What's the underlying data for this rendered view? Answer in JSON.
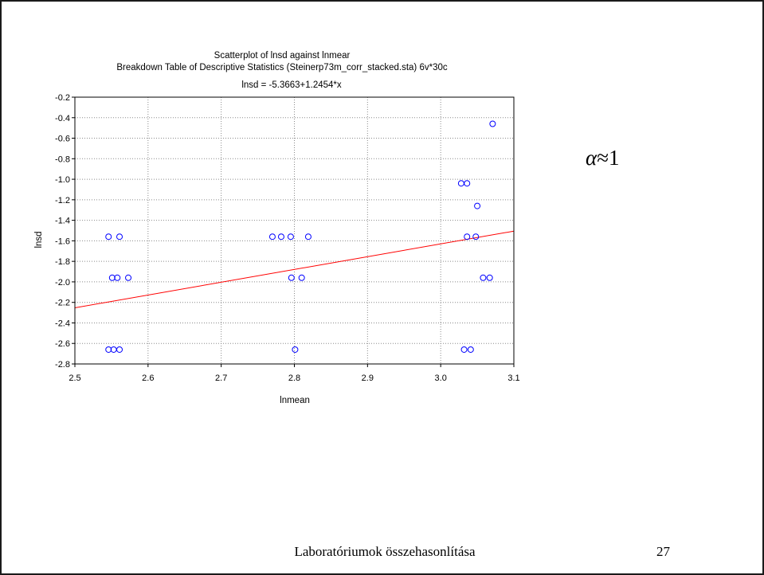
{
  "chart_data": {
    "type": "scatter",
    "title": "Scatterplot of lnsd against lnmear",
    "subtitle": "Breakdown Table of Descriptive Statistics (Steinerp73m_corr_stacked.sta) 6v*30c",
    "equation": "lnsd = -5.3663+1.2454*x",
    "xlabel": "lnmean",
    "ylabel": "lnsd",
    "xlim": [
      2.5,
      3.1
    ],
    "ylim": [
      -2.8,
      -0.2
    ],
    "x_ticks": [
      "2.5",
      "2.6",
      "2.7",
      "2.8",
      "2.9",
      "3.0",
      "3.1"
    ],
    "y_ticks": [
      "-0.2",
      "-0.4",
      "-0.6",
      "-0.8",
      "-1.0",
      "-1.2",
      "-1.4",
      "-1.6",
      "-1.8",
      "-2.0",
      "-2.2",
      "-2.4",
      "-2.6",
      "-2.8"
    ],
    "grid": true,
    "marker_color": "#0000ff",
    "fit_color": "#ff0000",
    "fit": {
      "intercept": -5.3663,
      "slope": 1.2454
    },
    "points": [
      {
        "x": 2.546,
        "y": -1.56
      },
      {
        "x": 2.561,
        "y": -1.56
      },
      {
        "x": 2.77,
        "y": -1.56
      },
      {
        "x": 2.782,
        "y": -1.56
      },
      {
        "x": 2.795,
        "y": -1.56
      },
      {
        "x": 2.819,
        "y": -1.56
      },
      {
        "x": 3.036,
        "y": -1.56
      },
      {
        "x": 3.048,
        "y": -1.56
      },
      {
        "x": 2.551,
        "y": -1.96
      },
      {
        "x": 2.558,
        "y": -1.96
      },
      {
        "x": 2.573,
        "y": -1.96
      },
      {
        "x": 2.796,
        "y": -1.96
      },
      {
        "x": 2.81,
        "y": -1.96
      },
      {
        "x": 3.058,
        "y": -1.96
      },
      {
        "x": 3.067,
        "y": -1.96
      },
      {
        "x": 2.546,
        "y": -2.66
      },
      {
        "x": 2.553,
        "y": -2.66
      },
      {
        "x": 2.561,
        "y": -2.66
      },
      {
        "x": 2.801,
        "y": -2.66
      },
      {
        "x": 3.032,
        "y": -2.66
      },
      {
        "x": 3.041,
        "y": -2.66
      },
      {
        "x": 3.028,
        "y": -1.04
      },
      {
        "x": 3.036,
        "y": -1.04
      },
      {
        "x": 3.05,
        "y": -1.26
      },
      {
        "x": 3.071,
        "y": -0.46
      }
    ]
  },
  "alpha_note": {
    "symbol": "α",
    "relation": "≈1"
  },
  "footer": {
    "title": "Laboratóriumok összehasonlítása",
    "page": "27"
  }
}
